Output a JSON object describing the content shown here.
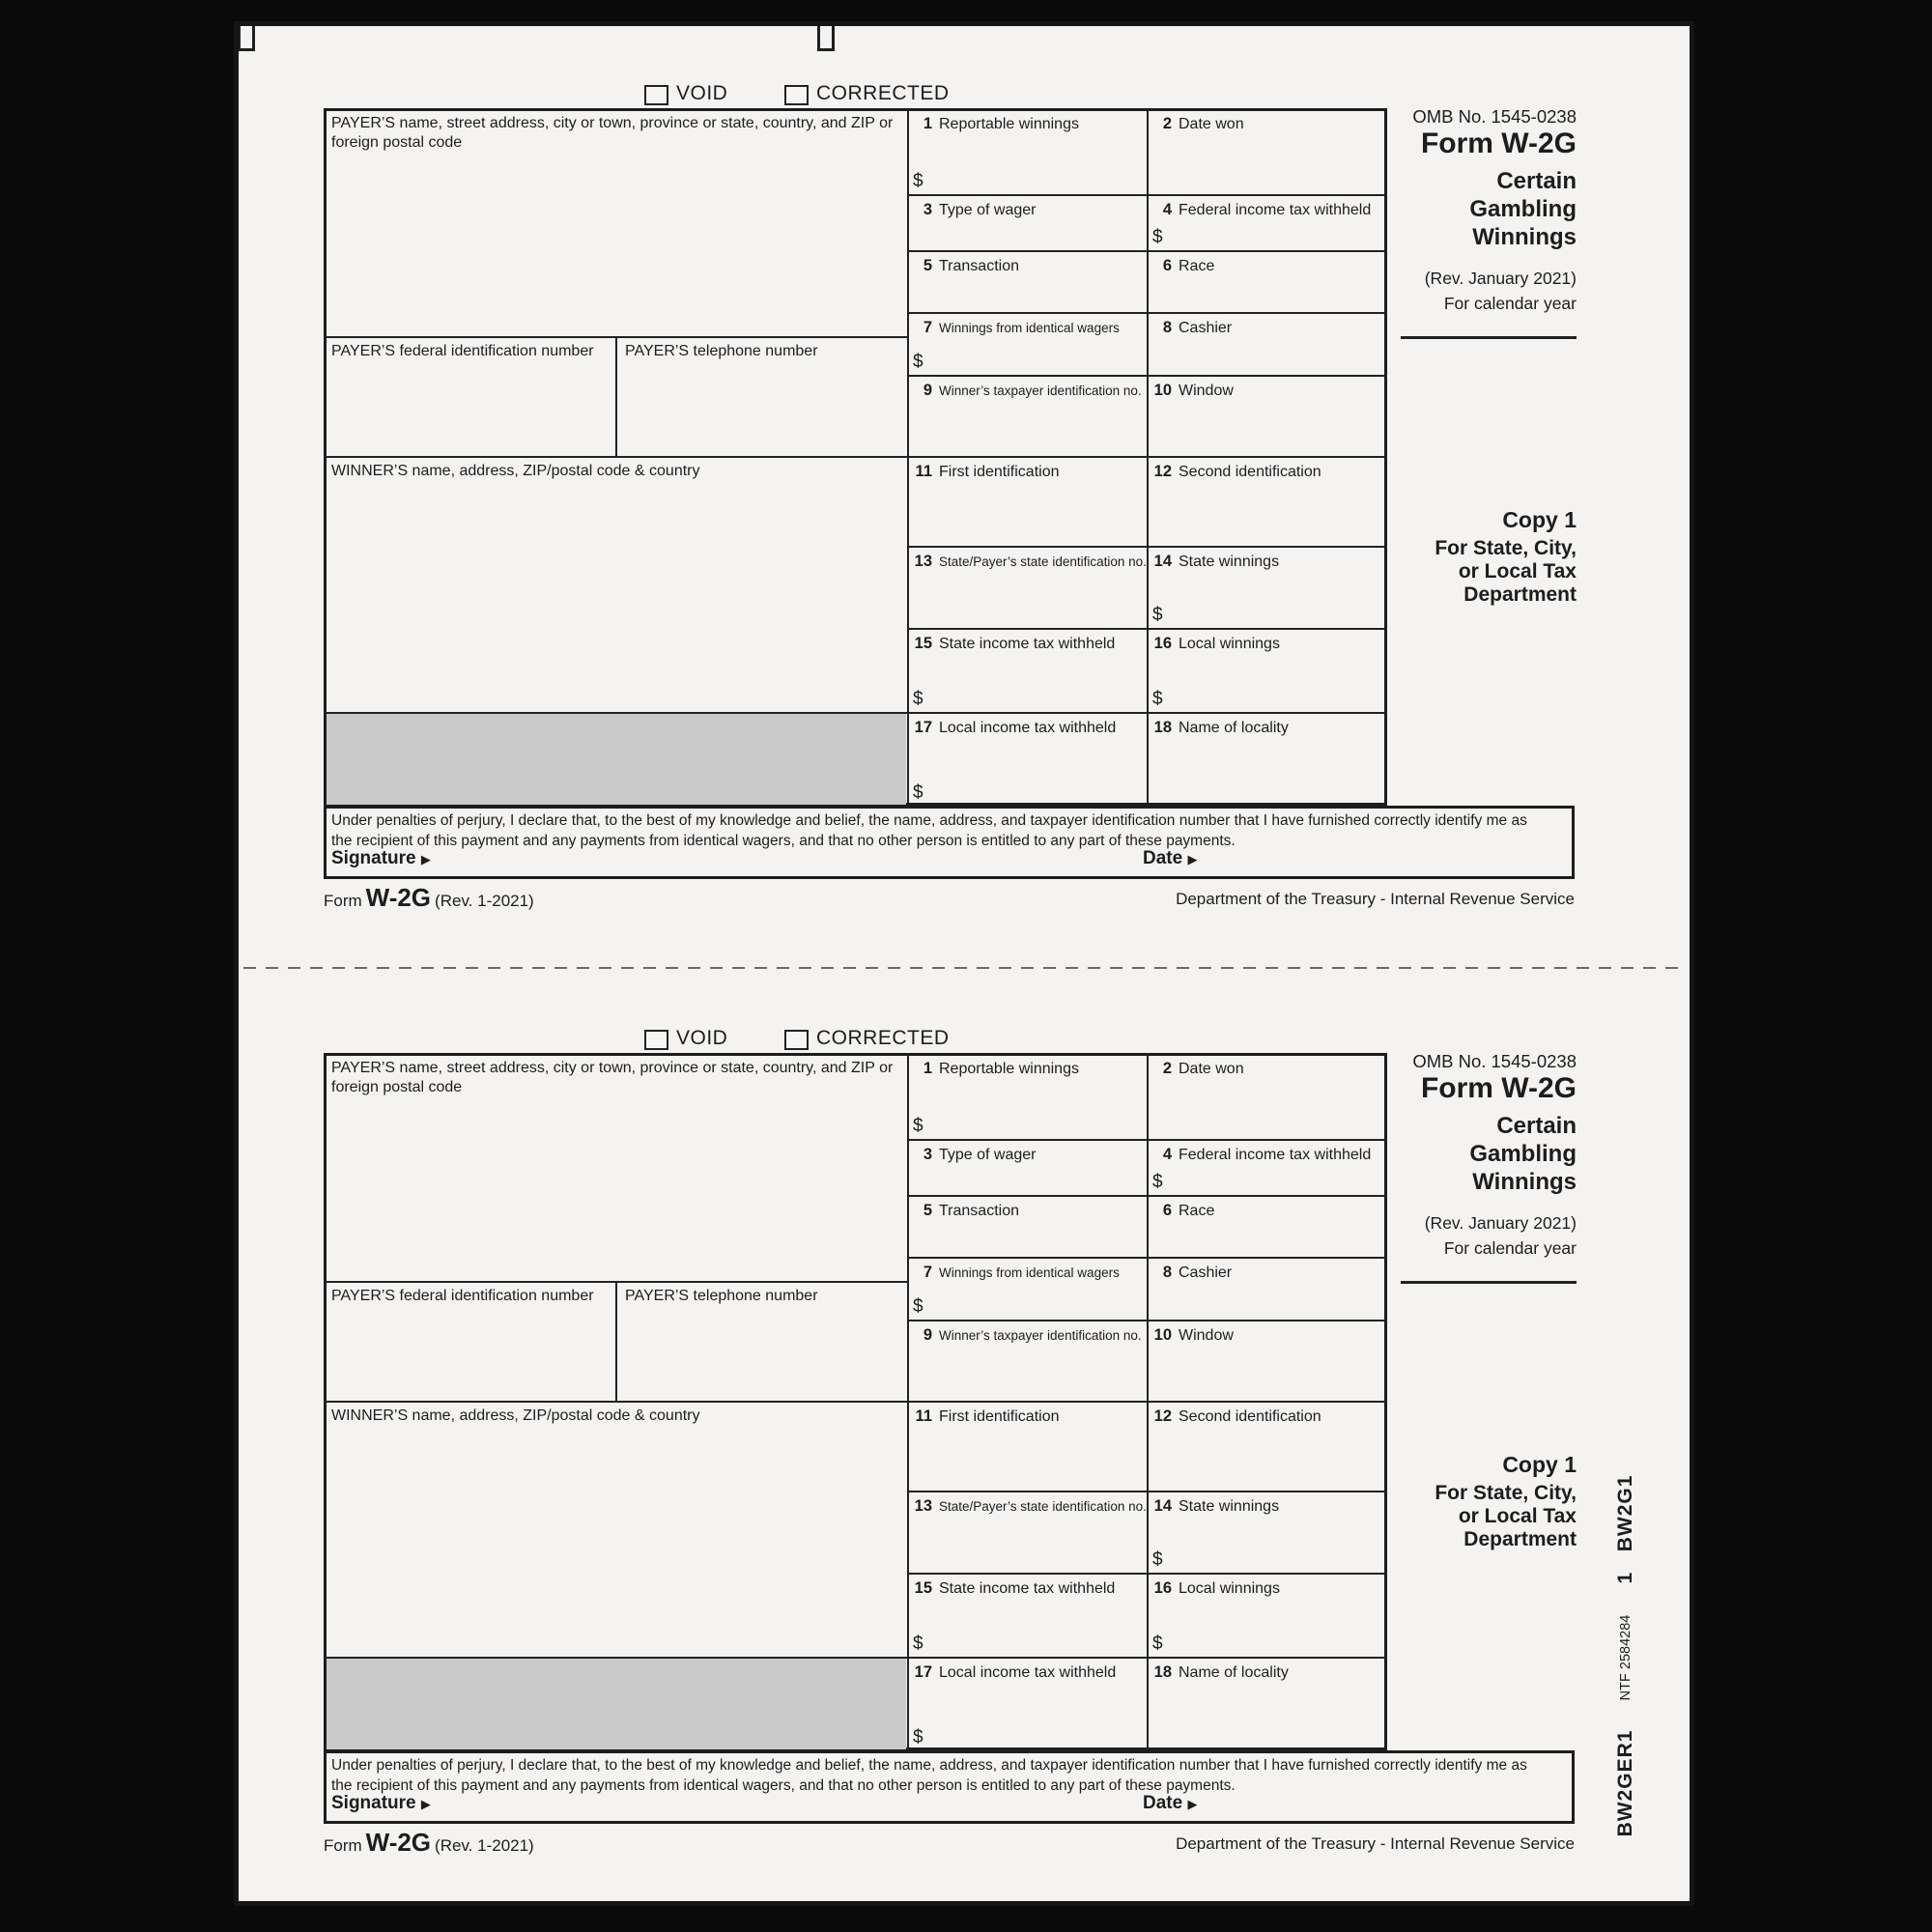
{
  "form": {
    "void_label": "VOID",
    "corrected_label": "CORRECTED",
    "omb": "OMB No. 1545-0238",
    "title": "Form W-2G",
    "subtitle": [
      "Certain",
      "Gambling",
      "Winnings"
    ],
    "revision": "(Rev. January 2021)",
    "calendar_year": "For calendar year",
    "payer_label": "PAYER’S name, street address, city or town, province or state, country, and ZIP or foreign postal code",
    "payer_fed_id_label": "PAYER’S federal identification number",
    "payer_phone_label": "PAYER’S telephone number",
    "winner_label": "WINNER’S name, address, ZIP/postal code & country",
    "dollar": "$",
    "boxes": [
      {
        "num": "1",
        "label": "Reportable winnings"
      },
      {
        "num": "2",
        "label": "Date won"
      },
      {
        "num": "3",
        "label": "Type of wager"
      },
      {
        "num": "4",
        "label": "Federal income tax withheld"
      },
      {
        "num": "5",
        "label": "Transaction"
      },
      {
        "num": "6",
        "label": "Race"
      },
      {
        "num": "7",
        "label": "Winnings from identical wagers"
      },
      {
        "num": "8",
        "label": "Cashier"
      },
      {
        "num": "9",
        "label": "Winner’s taxpayer identification no."
      },
      {
        "num": "10",
        "label": "Window"
      },
      {
        "num": "11",
        "label": "First identification"
      },
      {
        "num": "12",
        "label": "Second identification"
      },
      {
        "num": "13",
        "label": "State/Payer’s state identification no."
      },
      {
        "num": "14",
        "label": "State winnings"
      },
      {
        "num": "15",
        "label": "State income tax withheld"
      },
      {
        "num": "16",
        "label": "Local winnings"
      },
      {
        "num": "17",
        "label": "Local income tax withheld"
      },
      {
        "num": "18",
        "label": "Name of locality"
      }
    ],
    "copy_label": "Copy 1",
    "copy_for": [
      "For State, City,",
      "or Local Tax",
      "Department"
    ],
    "perjury": "Under penalties of perjury, I declare that, to the best of my knowledge and belief, the name, address, and taxpayer identification number that I have furnished correctly identify me as the recipient of this payment and any payments from identical wagers, and that no other person is entitled to any part of these payments.",
    "signature_label": "Signature",
    "date_label": "Date",
    "arrow": "▶",
    "footer": {
      "form_word": "Form",
      "form_number": "W-2G",
      "rev_short": "(Rev. 1-2021)",
      "department": "Department of the Treasury - Internal Revenue Service"
    }
  },
  "print_codes": {
    "line1": "1   BW2G1",
    "line2": "NTF 2584284",
    "line3": "BW2GER1"
  },
  "colors": {
    "paper": "#f4f3f1",
    "ink": "#1d1d1d",
    "shaded_field": "#c9c9c9",
    "background": "#0a0a0a"
  }
}
